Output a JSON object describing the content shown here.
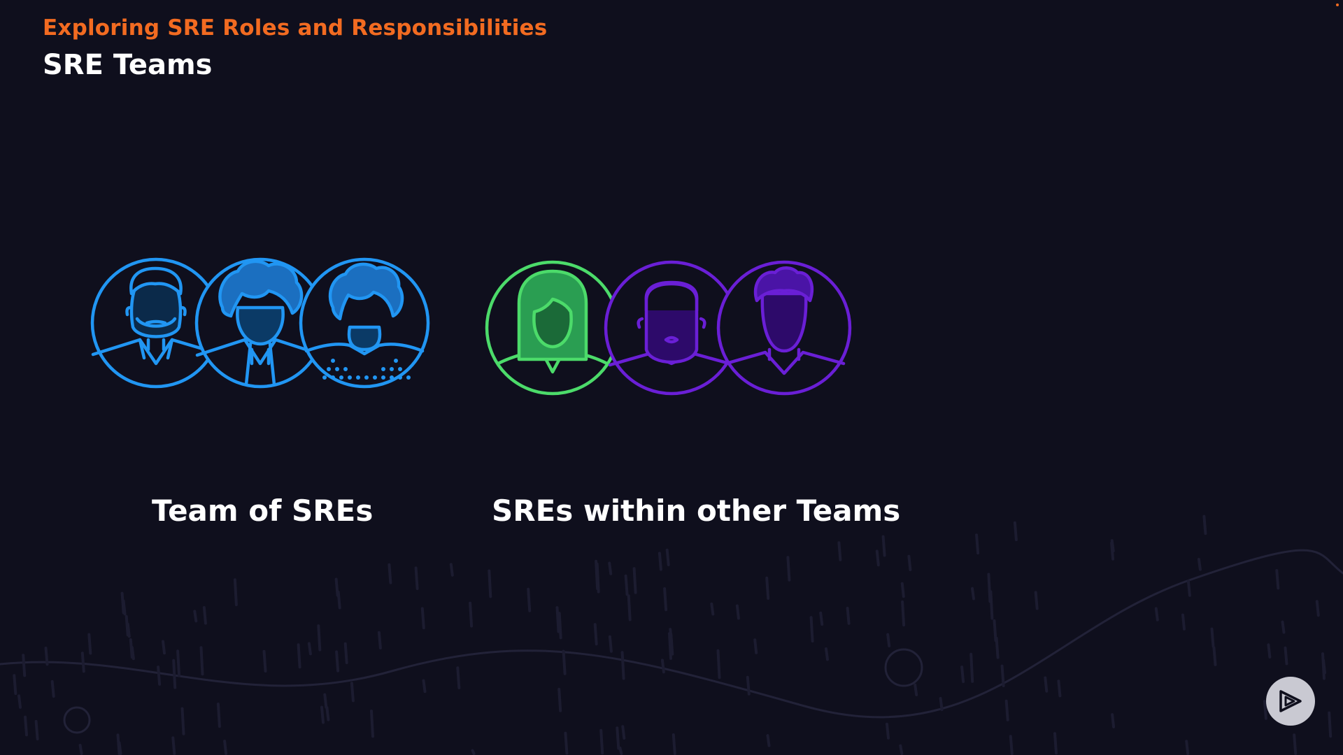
{
  "slide": {
    "course_title": "Exploring SRE Roles and Responsibilities",
    "title": "SRE Teams"
  },
  "groups": [
    {
      "label": "Team of SREs"
    },
    {
      "label": "SREs within other Teams"
    }
  ],
  "colors": {
    "background": "#0f0f1d",
    "accent_orange": "#f26b21",
    "team_blue": "#2196f3",
    "member_green": "#4cdb6a",
    "member_purple": "#6a1fd6"
  },
  "icons": {
    "player_logo": "play-logo-icon"
  }
}
